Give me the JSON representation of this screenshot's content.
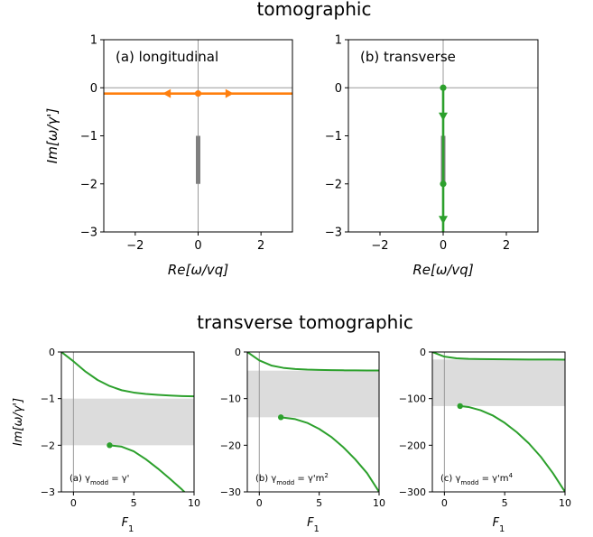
{
  "chart_data": [
    {
      "type": "line",
      "group_title": "tomographic",
      "panel_label": "(a) longitudinal",
      "xlabel": "Re[ω/vq]",
      "ylabel": "Im[ω/γ']",
      "xlim": [
        -3,
        3
      ],
      "ylim": [
        -3,
        1
      ],
      "xticks": [
        -2,
        0,
        2
      ],
      "xtick_labels": [
        "−2",
        "0",
        "2"
      ],
      "yticks": [
        1,
        0,
        -1,
        -2,
        -3
      ],
      "ytick_labels": [
        "1",
        "0",
        "−1",
        "−2",
        "−3"
      ],
      "reference_lines": {
        "x": 0,
        "y": 0
      },
      "continuum": {
        "x": 0,
        "y": [
          -2,
          -1
        ],
        "color": "#808080"
      },
      "series": [
        {
          "color": "#ff7f0e",
          "x": [
            -3,
            3
          ],
          "y": [
            -0.12,
            -0.12
          ],
          "marker": {
            "x": 0,
            "y": -0.12
          },
          "arrows": [
            {
              "x": -1.0,
              "y": -0.12,
              "dir": "left"
            },
            {
              "x": 1.0,
              "y": -0.12,
              "dir": "right"
            }
          ]
        }
      ]
    },
    {
      "type": "line",
      "panel_label": "(b) transverse",
      "xlabel": "Re[ω/vq]",
      "xlim": [
        -3,
        3
      ],
      "ylim": [
        -3,
        1
      ],
      "xticks": [
        -2,
        0,
        2
      ],
      "xtick_labels": [
        "−2",
        "0",
        "2"
      ],
      "yticks": [
        1,
        0,
        -1,
        -2,
        -3
      ],
      "ytick_labels": [
        "1",
        "0",
        "−1",
        "−2",
        "−3"
      ],
      "reference_lines": {
        "x": 0,
        "y": 0
      },
      "continuum": {
        "x": 0,
        "y": [
          -2,
          -1
        ],
        "color": "#808080"
      },
      "series": [
        {
          "color": "#2ca02c",
          "x": [
            0,
            0
          ],
          "y": [
            0,
            -3
          ],
          "markers": [
            {
              "x": 0,
              "y": 0
            },
            {
              "x": 0,
              "y": -2
            }
          ],
          "arrows": [
            {
              "x": 0,
              "y": -0.6,
              "dir": "down"
            },
            {
              "x": 0,
              "y": -2.75,
              "dir": "down"
            }
          ]
        }
      ]
    },
    {
      "type": "line",
      "group_title": "transverse tomographic",
      "panel_label": "(a) γ",
      "panel_label_sub": "modd",
      "panel_label_rhs": " = γ'",
      "panel_label_sup": "",
      "xlabel": "F",
      "xlabel_sub": "1",
      "ylabel": "Im[ω/γ']",
      "xlim": [
        -1,
        10
      ],
      "ylim": [
        -3,
        0
      ],
      "xticks": [
        0,
        5,
        10
      ],
      "xtick_labels": [
        "0",
        "5",
        "10"
      ],
      "yticks": [
        0,
        -1,
        -2,
        -3
      ],
      "ytick_labels": [
        "0",
        "−1",
        "−2",
        "−3"
      ],
      "vline": 0,
      "band": [
        -2,
        -1
      ],
      "series": [
        {
          "color": "#2ca02c",
          "x": [
            -1,
            0,
            1,
            2,
            3,
            4,
            5,
            6,
            7,
            8,
            9,
            10
          ],
          "y": [
            0,
            -0.2,
            -0.42,
            -0.6,
            -0.73,
            -0.82,
            -0.87,
            -0.9,
            -0.92,
            -0.935,
            -0.945,
            -0.95
          ]
        },
        {
          "color": "#2ca02c",
          "x": [
            3,
            4,
            5,
            6,
            7,
            8,
            9,
            10
          ],
          "y": [
            -2.0,
            -2.03,
            -2.13,
            -2.3,
            -2.5,
            -2.72,
            -2.95,
            -3.2
          ],
          "marker": {
            "x": 3,
            "y": -2.0
          }
        }
      ]
    },
    {
      "type": "line",
      "panel_label": "(b) γ",
      "panel_label_sub": "modd",
      "panel_label_rhs": " = γ'm",
      "panel_label_sup": "2",
      "xlabel": "F",
      "xlabel_sub": "1",
      "xlim": [
        -1,
        10
      ],
      "ylim": [
        -30,
        0
      ],
      "xticks": [
        0,
        5,
        10
      ],
      "xtick_labels": [
        "0",
        "5",
        "10"
      ],
      "yticks": [
        0,
        -10,
        -20,
        -30
      ],
      "ytick_labels": [
        "0",
        "−10",
        "−20",
        "−30"
      ],
      "vline": 0,
      "band": [
        -14,
        -4
      ],
      "series": [
        {
          "color": "#2ca02c",
          "x": [
            -1,
            0,
            1,
            2,
            3,
            4,
            5,
            6,
            7,
            8,
            9,
            10
          ],
          "y": [
            0,
            -1.8,
            -2.9,
            -3.4,
            -3.65,
            -3.78,
            -3.85,
            -3.9,
            -3.93,
            -3.95,
            -3.97,
            -3.98
          ]
        },
        {
          "color": "#2ca02c",
          "x": [
            1.8,
            3,
            4,
            5,
            6,
            7,
            8,
            9,
            10
          ],
          "y": [
            -14.0,
            -14.4,
            -15.2,
            -16.5,
            -18.2,
            -20.4,
            -23.0,
            -26.0,
            -30.0
          ],
          "marker": {
            "x": 1.8,
            "y": -14.0
          }
        }
      ]
    },
    {
      "type": "line",
      "panel_label": "(c) γ",
      "panel_label_sub": "modd",
      "panel_label_rhs": " = γ'm",
      "panel_label_sup": "4",
      "xlabel": "F",
      "xlabel_sub": "1",
      "xlim": [
        -1,
        10
      ],
      "ylim": [
        -300,
        0
      ],
      "xticks": [
        0,
        5,
        10
      ],
      "xtick_labels": [
        "0",
        "5",
        "10"
      ],
      "yticks": [
        0,
        -100,
        -200,
        -300
      ],
      "ytick_labels": [
        "0",
        "−100",
        "−200",
        "−300"
      ],
      "vline": 0,
      "band": [
        -116,
        -16
      ],
      "series": [
        {
          "color": "#2ca02c",
          "x": [
            -1,
            0,
            1,
            2,
            3,
            4,
            5,
            6,
            7,
            8,
            9,
            10
          ],
          "y": [
            0,
            -10,
            -13.5,
            -14.8,
            -15.3,
            -15.6,
            -15.8,
            -16.0,
            -16.1,
            -16.2,
            -16.3,
            -16.4
          ]
        },
        {
          "color": "#2ca02c",
          "x": [
            1.3,
            2,
            3,
            4,
            5,
            6,
            7,
            8,
            9,
            10
          ],
          "y": [
            -116,
            -118,
            -125,
            -136,
            -152,
            -172,
            -196,
            -225,
            -260,
            -300
          ],
          "marker": {
            "x": 1.3,
            "y": -116
          }
        }
      ]
    }
  ]
}
